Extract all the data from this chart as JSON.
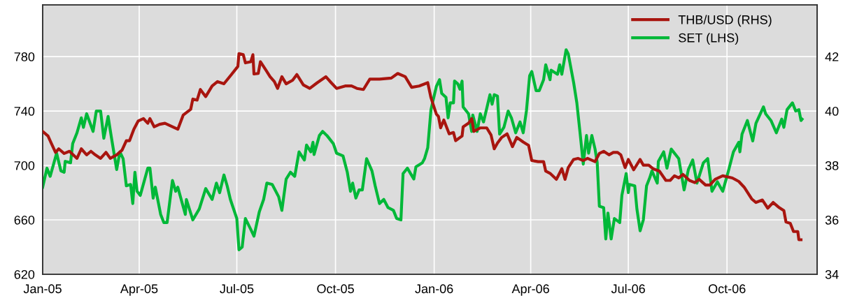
{
  "chart_data": {
    "type": "line",
    "grid": true,
    "legend": "top right",
    "xlim": [
      "2005-01-01",
      "2006-12-24"
    ],
    "xticks": [
      {
        "value": "2005-01-01",
        "label": "Jan-05"
      },
      {
        "value": "2005-04-01",
        "label": "Apr-05"
      },
      {
        "value": "2005-07-01",
        "label": "Jul-05"
      },
      {
        "value": "2005-10-01",
        "label": "Oct-05"
      },
      {
        "value": "2006-01-01",
        "label": "Jan-06"
      },
      {
        "value": "2006-04-01",
        "label": "Apr-06"
      },
      {
        "value": "2006-07-01",
        "label": "Jul-06"
      },
      {
        "value": "2006-10-01",
        "label": "Oct-06"
      }
    ],
    "ylim": [
      620,
      818
    ],
    "yticks": [
      620,
      660,
      700,
      740,
      780
    ],
    "y2lim": [
      34,
      43.9
    ],
    "y2ticks": [
      34,
      36,
      38,
      40,
      42
    ],
    "series": [
      {
        "name": "THB/USD (RHS)",
        "color": "#a8150f",
        "axis": "y2",
        "x": [
          "2005-01-01",
          "2005-01-06",
          "2005-01-09",
          "2005-01-13",
          "2005-01-16",
          "2005-01-21",
          "2005-01-26",
          "2005-02-02",
          "2005-02-06",
          "2005-02-11",
          "2005-02-15",
          "2005-02-19",
          "2005-02-24",
          "2005-03-01",
          "2005-03-05",
          "2005-03-11",
          "2005-03-16",
          "2005-03-20",
          "2005-03-23",
          "2005-03-27",
          "2005-03-31",
          "2005-04-05",
          "2005-04-09",
          "2005-04-11",
          "2005-04-15",
          "2005-04-20",
          "2005-04-25",
          "2005-05-02",
          "2005-05-07",
          "2005-05-12",
          "2005-05-19",
          "2005-05-21",
          "2005-05-25",
          "2005-05-28",
          "2005-06-02",
          "2005-06-08",
          "2005-06-13",
          "2005-06-19",
          "2005-06-26",
          "2005-07-02",
          "2005-07-03",
          "2005-07-07",
          "2005-07-09",
          "2005-07-14",
          "2005-07-16",
          "2005-07-17",
          "2005-07-21",
          "2005-07-23",
          "2005-07-28",
          "2005-08-01",
          "2005-08-05",
          "2005-08-08",
          "2005-08-12",
          "2005-08-16",
          "2005-08-22",
          "2005-08-26",
          "2005-09-01",
          "2005-09-07",
          "2005-09-14",
          "2005-09-22",
          "2005-09-27",
          "2005-10-02",
          "2005-10-10",
          "2005-10-16",
          "2005-10-21",
          "2005-10-27",
          "2005-11-02",
          "2005-11-11",
          "2005-11-22",
          "2005-11-28",
          "2005-12-05",
          "2005-12-11",
          "2005-12-18",
          "2005-12-26",
          "2005-12-29",
          "2006-01-03",
          "2006-01-05",
          "2006-01-07",
          "2006-01-10",
          "2006-01-15",
          "2006-01-19",
          "2006-01-21",
          "2006-01-27",
          "2006-01-28",
          "2006-02-02",
          "2006-02-05",
          "2006-02-07",
          "2006-02-13",
          "2006-02-19",
          "2006-02-23",
          "2006-02-26",
          "2006-03-01",
          "2006-03-05",
          "2006-03-10",
          "2006-03-15",
          "2006-03-19",
          "2006-03-25",
          "2006-03-30",
          "2006-04-02",
          "2006-04-08",
          "2006-04-13",
          "2006-04-15",
          "2006-04-19",
          "2006-04-25",
          "2006-04-30",
          "2006-05-03",
          "2006-05-06",
          "2006-05-11",
          "2006-05-15",
          "2006-05-20",
          "2006-05-24",
          "2006-05-31",
          "2006-06-04",
          "2006-06-08",
          "2006-06-13",
          "2006-06-17",
          "2006-06-21",
          "2006-06-24",
          "2006-06-28",
          "2006-07-01",
          "2006-07-06",
          "2006-07-12",
          "2006-07-15",
          "2006-07-20",
          "2006-07-24",
          "2006-07-30",
          "2006-08-05",
          "2006-08-09",
          "2006-08-13",
          "2006-08-17",
          "2006-08-21",
          "2006-08-27",
          "2006-09-01",
          "2006-09-05",
          "2006-09-11",
          "2006-09-15",
          "2006-09-20",
          "2006-09-27",
          "2006-10-06",
          "2006-10-12",
          "2006-10-17",
          "2006-10-24",
          "2006-10-28",
          "2006-11-03",
          "2006-11-08",
          "2006-11-13",
          "2006-11-18",
          "2006-11-23",
          "2006-11-25",
          "2006-11-29",
          "2006-12-02",
          "2006-12-06",
          "2006-12-07",
          "2006-12-09"
        ],
        "values": [
          39.25,
          39.08,
          38.82,
          38.48,
          38.61,
          38.44,
          38.52,
          38.26,
          38.61,
          38.39,
          38.52,
          38.39,
          38.26,
          38.48,
          38.26,
          38.39,
          38.56,
          38.91,
          38.91,
          39.33,
          39.63,
          39.72,
          39.55,
          39.72,
          39.42,
          39.51,
          39.55,
          39.42,
          39.33,
          39.85,
          40.06,
          40.44,
          40.4,
          40.79,
          40.53,
          40.92,
          41.08,
          41.0,
          41.34,
          41.64,
          42.11,
          42.07,
          41.77,
          41.81,
          42.07,
          41.36,
          41.38,
          41.81,
          41.51,
          41.26,
          41.08,
          40.83,
          41.26,
          41.0,
          41.13,
          41.34,
          40.96,
          40.83,
          41.04,
          41.26,
          41.04,
          40.83,
          40.92,
          40.92,
          40.83,
          40.79,
          41.17,
          41.17,
          41.21,
          41.38,
          41.26,
          40.87,
          40.92,
          41.04,
          40.49,
          39.89,
          39.8,
          39.38,
          39.67,
          39.16,
          39.21,
          38.91,
          39.08,
          39.42,
          39.55,
          39.72,
          39.25,
          39.38,
          39.38,
          39.12,
          38.61,
          38.82,
          39.03,
          39.16,
          38.69,
          39.03,
          38.86,
          38.74,
          38.18,
          38.14,
          38.14,
          37.79,
          37.71,
          37.49,
          37.88,
          37.49,
          37.92,
          38.22,
          38.26,
          38.18,
          38.26,
          38.14,
          38.44,
          38.52,
          38.39,
          38.48,
          38.48,
          38.39,
          37.92,
          38.22,
          37.84,
          38.22,
          38.01,
          38.01,
          37.88,
          37.79,
          37.45,
          37.45,
          37.62,
          37.54,
          37.67,
          37.45,
          37.37,
          37.49,
          37.28,
          37.28,
          37.49,
          37.62,
          37.54,
          37.41,
          37.2,
          36.77,
          36.64,
          36.73,
          36.43,
          36.64,
          36.47,
          36.34,
          35.92,
          35.87,
          35.57,
          35.57,
          35.27,
          35.27
        ]
      },
      {
        "name": "SET (LHS)",
        "color": "#00b838",
        "x": [
          "2005-01-01",
          "2005-01-05",
          "2005-01-08",
          "2005-01-14",
          "2005-01-18",
          "2005-01-21",
          "2005-01-22",
          "2005-01-27",
          "2005-01-29",
          "2005-02-02",
          "2005-02-06",
          "2005-02-08",
          "2005-02-11",
          "2005-02-17",
          "2005-02-20",
          "2005-02-24",
          "2005-02-27",
          "2005-03-03",
          "2005-03-06",
          "2005-03-11",
          "2005-03-14",
          "2005-03-17",
          "2005-03-20",
          "2005-03-24",
          "2005-03-26",
          "2005-03-28",
          "2005-03-30",
          "2005-04-02",
          "2005-04-09",
          "2005-04-11",
          "2005-04-14",
          "2005-04-16",
          "2005-04-21",
          "2005-04-24",
          "2005-04-27",
          "2005-05-02",
          "2005-05-05",
          "2005-05-07",
          "2005-05-14",
          "2005-05-15",
          "2005-05-21",
          "2005-05-27",
          "2005-06-02",
          "2005-06-08",
          "2005-06-12",
          "2005-06-15",
          "2005-06-19",
          "2005-06-22",
          "2005-06-25",
          "2005-07-01",
          "2005-07-03",
          "2005-07-06",
          "2005-07-09",
          "2005-07-14",
          "2005-07-17",
          "2005-07-22",
          "2005-07-26",
          "2005-07-29",
          "2005-08-03",
          "2005-08-09",
          "2005-08-12",
          "2005-08-16",
          "2005-08-20",
          "2005-08-24",
          "2005-08-28",
          "2005-09-02",
          "2005-09-04",
          "2005-09-08",
          "2005-09-10",
          "2005-09-11",
          "2005-09-16",
          "2005-09-19",
          "2005-09-23",
          "2005-09-29",
          "2005-10-02",
          "2005-10-08",
          "2005-10-12",
          "2005-10-15",
          "2005-10-17",
          "2005-10-20",
          "2005-10-23",
          "2005-10-26",
          "2005-10-30",
          "2005-11-04",
          "2005-11-07",
          "2005-11-11",
          "2005-11-15",
          "2005-11-19",
          "2005-11-24",
          "2005-11-27",
          "2005-12-01",
          "2005-12-03",
          "2005-12-07",
          "2005-12-13",
          "2005-12-15",
          "2005-12-21",
          "2005-12-23",
          "2005-12-26",
          "2005-12-29",
          "2006-01-03",
          "2006-01-06",
          "2006-01-08",
          "2006-01-12",
          "2006-01-14",
          "2006-01-16",
          "2006-01-19",
          "2006-01-20",
          "2006-01-23",
          "2006-01-25",
          "2006-01-27",
          "2006-01-28",
          "2006-02-02",
          "2006-02-05",
          "2006-02-06",
          "2006-02-10",
          "2006-02-13",
          "2006-02-16",
          "2006-02-22",
          "2006-02-24",
          "2006-02-26",
          "2006-03-01",
          "2006-03-03",
          "2006-03-07",
          "2006-03-11",
          "2006-03-14",
          "2006-03-18",
          "2006-03-22",
          "2006-03-25",
          "2006-03-28",
          "2006-03-31",
          "2006-04-02",
          "2006-04-06",
          "2006-04-09",
          "2006-04-13",
          "2006-04-15",
          "2006-04-19",
          "2006-04-20",
          "2006-04-26",
          "2006-04-28",
          "2006-04-30",
          "2006-05-04",
          "2006-05-06",
          "2006-05-11",
          "2006-05-14",
          "2006-05-17",
          "2006-05-20",
          "2006-05-23",
          "2006-05-25",
          "2006-05-28",
          "2006-05-31",
          "2006-06-02",
          "2006-06-04",
          "2006-06-08",
          "2006-06-10",
          "2006-06-12",
          "2006-06-15",
          "2006-06-18",
          "2006-06-23",
          "2006-06-25",
          "2006-06-29",
          "2006-07-01",
          "2006-07-02",
          "2006-07-07",
          "2006-07-09",
          "2006-07-12",
          "2006-07-15",
          "2006-07-18",
          "2006-07-21",
          "2006-07-23",
          "2006-07-28",
          "2006-07-29",
          "2006-08-03",
          "2006-08-06",
          "2006-08-10",
          "2006-08-17",
          "2006-08-22",
          "2006-08-26",
          "2006-08-30",
          "2006-09-03",
          "2006-09-09",
          "2006-09-13",
          "2006-09-17",
          "2006-09-22",
          "2006-09-27",
          "2006-10-02",
          "2006-10-07",
          "2006-10-12",
          "2006-10-13",
          "2006-10-15",
          "2006-10-20",
          "2006-10-25",
          "2006-10-28",
          "2006-11-04",
          "2006-11-06",
          "2006-11-11",
          "2006-11-16",
          "2006-11-21",
          "2006-11-23",
          "2006-11-26",
          "2006-12-01",
          "2006-12-04",
          "2006-12-07",
          "2006-12-09",
          "2006-12-10"
        ],
        "values": [
          684,
          698,
          692,
          709,
          696,
          695,
          703,
          702,
          716,
          724,
          735,
          728,
          738,
          725,
          740,
          740,
          720,
          736,
          721,
          697,
          710,
          705,
          685,
          686,
          672,
          695,
          681,
          678,
          698,
          698,
          676,
          684,
          664,
          658,
          658,
          689,
          681,
          684,
          664,
          675,
          660,
          668,
          683,
          675,
          687,
          680,
          693,
          685,
          675,
          661,
          638,
          640,
          661,
          653,
          648,
          666,
          675,
          687,
          686,
          677,
          667,
          690,
          695,
          692,
          710,
          704,
          715,
          710,
          717,
          708,
          722,
          725,
          722,
          716,
          709,
          707,
          695,
          681,
          687,
          676,
          682,
          682,
          705,
          696,
          685,
          672,
          675,
          669,
          667,
          661,
          660,
          694,
          698,
          690,
          699,
          702,
          705,
          713,
          741,
          758,
          763,
          753,
          750,
          735,
          746,
          746,
          762,
          760,
          756,
          762,
          743,
          738,
          725,
          737,
          725,
          738,
          732,
          752,
          745,
          752,
          751,
          723,
          728,
          740,
          735,
          724,
          732,
          724,
          740,
          766,
          769,
          755,
          755,
          763,
          774,
          763,
          770,
          767,
          774,
          767,
          785,
          782,
          761,
          746,
          724,
          701,
          722,
          709,
          722,
          712,
          702,
          670,
          669,
          646,
          665,
          646,
          661,
          658,
          678,
          694,
          680,
          686,
          685,
          668,
          652,
          660,
          685,
          691,
          696,
          687,
          703,
          710,
          698,
          712,
          705,
          682,
          697,
          704,
          687,
          702,
          705,
          681,
          688,
          681,
          695,
          710,
          717,
          710,
          723,
          733,
          718,
          731,
          743,
          738,
          733,
          724,
          734,
          728,
          741,
          746,
          740,
          741,
          733,
          734
        ]
      }
    ]
  }
}
